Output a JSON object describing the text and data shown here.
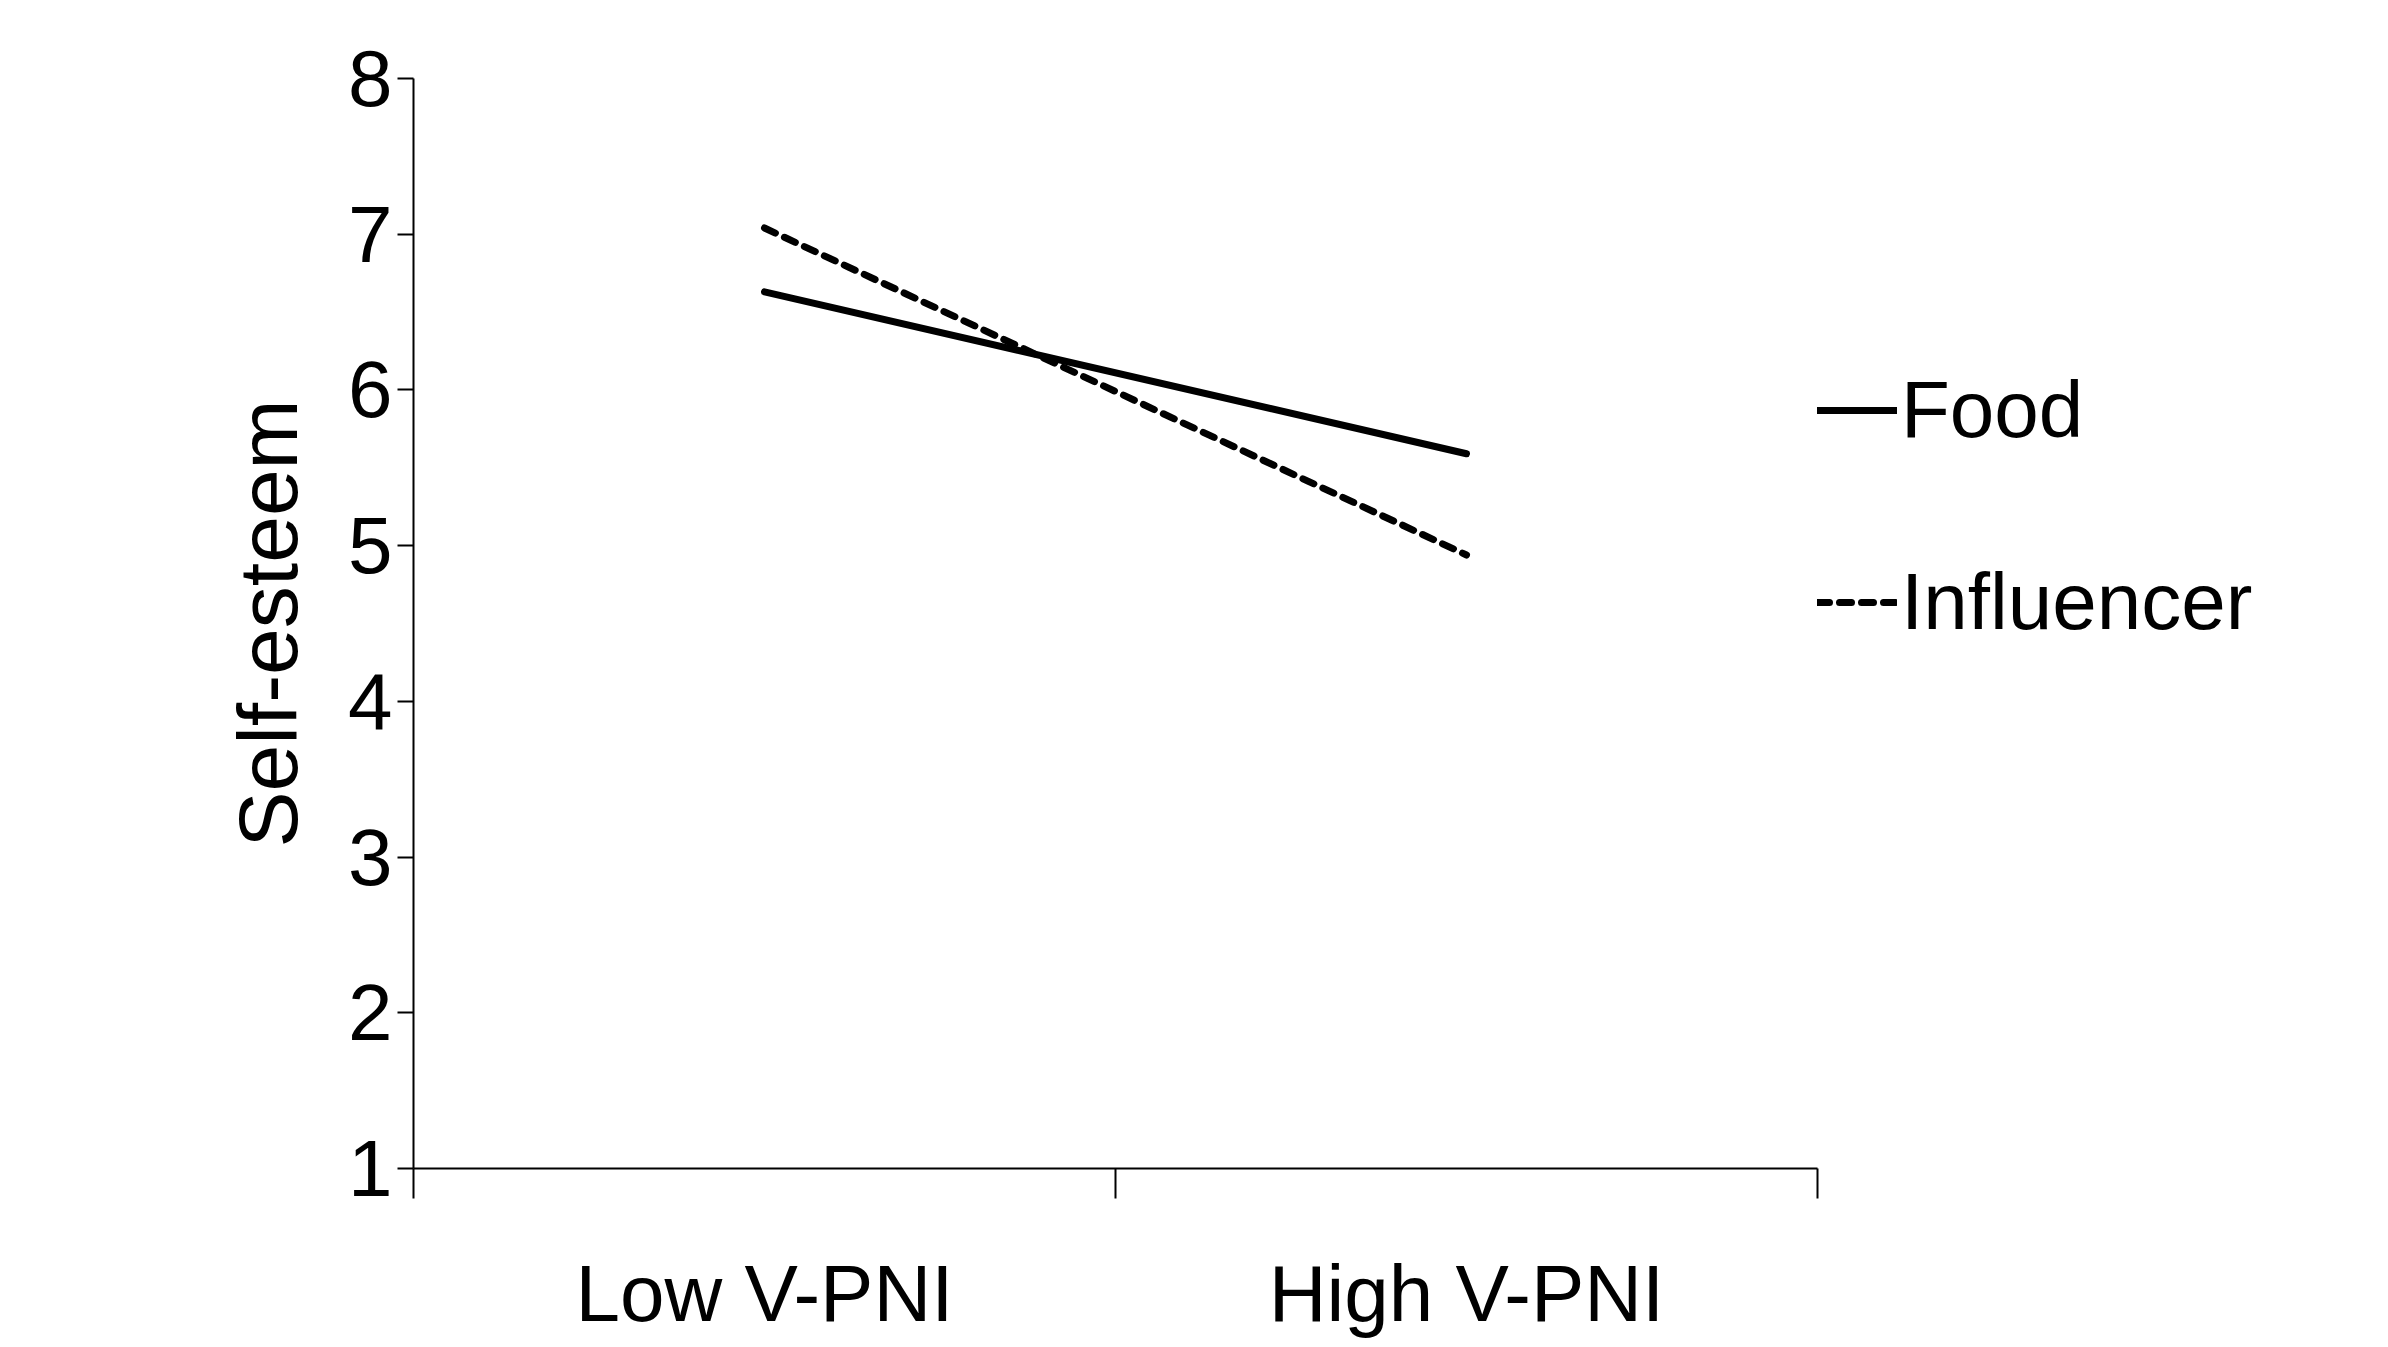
{
  "chart_data": {
    "type": "line",
    "ylabel": "Self-esteem",
    "categories": [
      "Low V-PNI",
      "High V-PNI"
    ],
    "series": [
      {
        "name": "Food",
        "color": "#000000",
        "line_style": "solid",
        "values": [
          6.63,
          5.59
        ]
      },
      {
        "name": "Influencer",
        "color": "#000000",
        "line_style": "dashed",
        "values": [
          7.04,
          4.94
        ]
      }
    ],
    "ylim": [
      1,
      8
    ],
    "yticks": [
      1,
      2,
      3,
      4,
      5,
      6,
      7,
      8
    ],
    "grid": false,
    "legend": "right",
    "marker": "none"
  }
}
